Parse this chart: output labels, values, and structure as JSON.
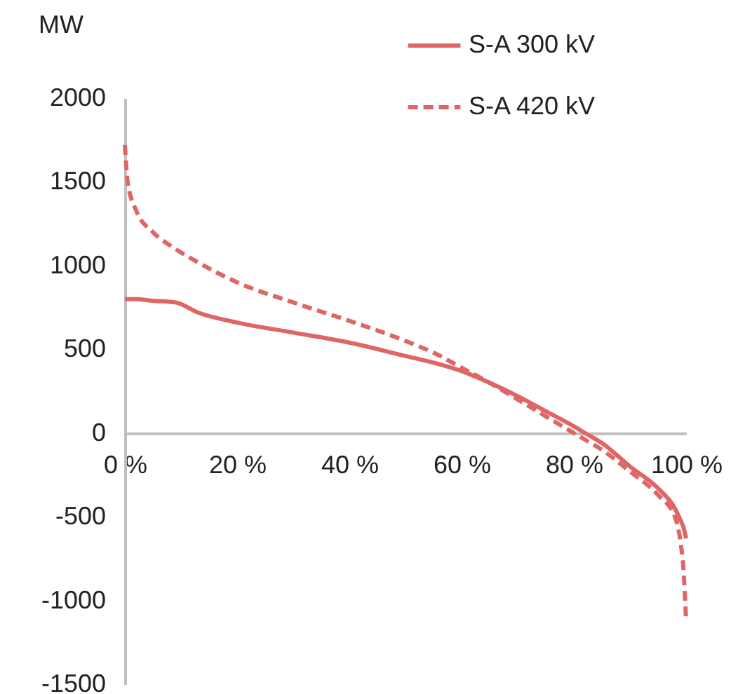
{
  "chart_data": {
    "type": "line",
    "ylabel": "MW",
    "x": [
      0,
      0.5,
      2,
      5,
      9,
      13,
      20,
      30,
      40,
      50,
      55,
      60,
      65,
      70,
      75,
      80,
      82,
      85,
      90,
      95,
      98,
      99,
      99.5,
      100
    ],
    "series": [
      {
        "name": "S-A 300 kV",
        "color": "#e06666",
        "line_style": "solid",
        "values": [
          800,
          800,
          800,
          790,
          780,
          720,
          660,
          600,
          540,
          460,
          420,
          370,
          300,
          220,
          130,
          40,
          0,
          -60,
          -200,
          -330,
          -450,
          -520,
          -560,
          -630
        ]
      },
      {
        "name": "S-A 420 kV",
        "color": "#e06666",
        "line_style": "dashed",
        "values": [
          1720,
          1500,
          1330,
          1200,
          1100,
          1020,
          900,
          780,
          670,
          550,
          480,
          390,
          300,
          200,
          100,
          0,
          -40,
          -100,
          -230,
          -370,
          -500,
          -650,
          -800,
          -1120
        ]
      }
    ],
    "xlim": [
      0,
      100
    ],
    "ylim": [
      -1500,
      2000
    ],
    "xticks": [
      {
        "value": 0,
        "label": "0 %"
      },
      {
        "value": 20,
        "label": "20 %"
      },
      {
        "value": 40,
        "label": "40 %"
      },
      {
        "value": 60,
        "label": "60 %"
      },
      {
        "value": 80,
        "label": "80 %"
      },
      {
        "value": 100,
        "label": "100 %"
      }
    ],
    "yticks": [
      -1500,
      -1000,
      -500,
      0,
      500,
      1000,
      1500,
      2000
    ],
    "grid": false,
    "legend": "top right",
    "marker": "none"
  }
}
